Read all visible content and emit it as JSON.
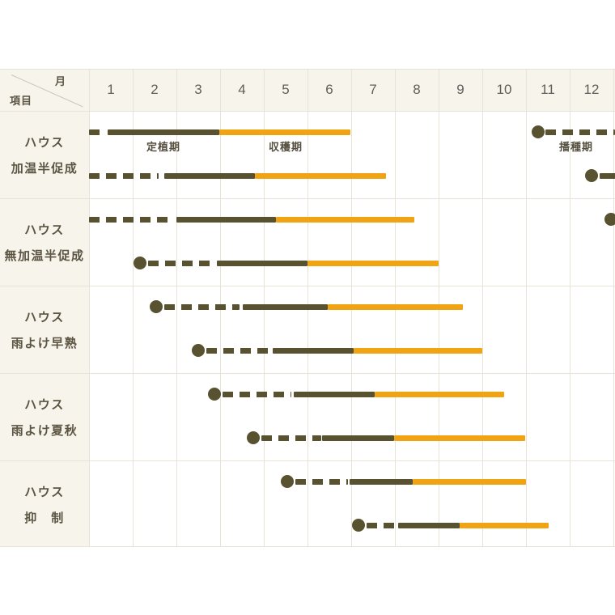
{
  "header": {
    "month_axis_label": "月",
    "item_axis_label": "項目",
    "months": [
      "1",
      "2",
      "3",
      "4",
      "5",
      "6",
      "7",
      "8",
      "9",
      "10",
      "11",
      "12"
    ]
  },
  "colors": {
    "bar_dark": "#585231",
    "bar_orange": "#F0A413",
    "table_bg": "#F7F4EB",
    "plot_bg": "#FFFFFF",
    "grid_line": "#E7E3D8",
    "label_text": "#5C5544",
    "month_text": "#5E5E5A",
    "annotation_text": "#554F3F",
    "diagonal_line": "#C9C5BA"
  },
  "chart_data": {
    "type": "gantt-calendar",
    "title": "",
    "x_axis": {
      "label": "月",
      "range": [
        1,
        13
      ],
      "ticks": [
        "1",
        "2",
        "3",
        "4",
        "5",
        "6",
        "7",
        "8",
        "9",
        "10",
        "11",
        "12"
      ]
    },
    "legend": {
      "dot_and_dash": "播種期",
      "solid_dark": "定植期",
      "solid_orange": "収穫期"
    },
    "rows": [
      {
        "label_lines": [
          "ハウス",
          "加温半促成"
        ],
        "lines": [
          {
            "segments": [
              {
                "type": "dash",
                "from": 1.0,
                "to": 1.3
              },
              {
                "type": "solid",
                "from": 1.42,
                "to": 3.98
              },
              {
                "type": "harvest",
                "from": 3.98,
                "to": 6.98
              },
              {
                "type": "dot",
                "at": 11.28
              },
              {
                "type": "dash",
                "from": 11.45,
                "to": 13.05
              }
            ],
            "annotations": [
              {
                "text": "定植期",
                "at": 2.7
              },
              {
                "text": "収穫期",
                "at": 5.5
              },
              {
                "text": "播種期",
                "at": 12.15
              }
            ]
          },
          {
            "segments": [
              {
                "type": "dash",
                "from": 1.0,
                "to": 2.6
              },
              {
                "type": "solid",
                "from": 2.72,
                "to": 4.8
              },
              {
                "type": "harvest",
                "from": 4.8,
                "to": 7.8
              },
              {
                "type": "dot",
                "at": 12.5
              },
              {
                "type": "solid",
                "from": 12.68,
                "to": 13.05
              }
            ],
            "annotations": []
          }
        ]
      },
      {
        "label_lines": [
          "ハウス",
          "無加温半促成"
        ],
        "lines": [
          {
            "segments": [
              {
                "type": "dash",
                "from": 1.0,
                "to": 2.95
              },
              {
                "type": "solid",
                "from": 3.0,
                "to": 5.28
              },
              {
                "type": "harvest",
                "from": 5.28,
                "to": 8.45
              },
              {
                "type": "dot",
                "at": 12.95
              }
            ],
            "annotations": []
          },
          {
            "segments": [
              {
                "type": "dot",
                "at": 2.17
              },
              {
                "type": "dash",
                "from": 2.35,
                "to": 3.88
              },
              {
                "type": "solid",
                "from": 3.92,
                "to": 6.0
              },
              {
                "type": "harvest",
                "from": 6.0,
                "to": 9.0
              }
            ],
            "annotations": []
          }
        ]
      },
      {
        "label_lines": [
          "ハウス",
          "雨よけ早熟"
        ],
        "lines": [
          {
            "segments": [
              {
                "type": "dot",
                "at": 2.54
              },
              {
                "type": "dash",
                "from": 2.72,
                "to": 4.45
              },
              {
                "type": "solid",
                "from": 4.52,
                "to": 6.46
              },
              {
                "type": "harvest",
                "from": 6.46,
                "to": 9.56
              }
            ],
            "annotations": []
          },
          {
            "segments": [
              {
                "type": "dot",
                "at": 3.5
              },
              {
                "type": "dash",
                "from": 3.68,
                "to": 5.16
              },
              {
                "type": "solid",
                "from": 5.2,
                "to": 7.06
              },
              {
                "type": "harvest",
                "from": 7.06,
                "to": 10.0
              }
            ],
            "annotations": []
          }
        ]
      },
      {
        "label_lines": [
          "ハウス",
          "雨よけ夏秋"
        ],
        "lines": [
          {
            "segments": [
              {
                "type": "dot",
                "at": 3.87
              },
              {
                "type": "dash",
                "from": 4.05,
                "to": 5.63
              },
              {
                "type": "solid",
                "from": 5.69,
                "to": 7.54
              },
              {
                "type": "harvest",
                "from": 7.54,
                "to": 10.5
              }
            ],
            "annotations": []
          },
          {
            "segments": [
              {
                "type": "dot",
                "at": 4.76
              },
              {
                "type": "dash",
                "from": 4.94,
                "to": 6.31
              },
              {
                "type": "solid",
                "from": 6.33,
                "to": 7.98
              },
              {
                "type": "harvest",
                "from": 7.98,
                "to": 10.98
              }
            ],
            "annotations": []
          }
        ]
      },
      {
        "label_lines": [
          "ハウス",
          "抑　制"
        ],
        "lines": [
          {
            "segments": [
              {
                "type": "dot",
                "at": 5.54
              },
              {
                "type": "dash",
                "from": 5.72,
                "to": 6.93
              },
              {
                "type": "solid",
                "from": 6.96,
                "to": 8.41
              },
              {
                "type": "harvest",
                "from": 8.41,
                "to": 11.0
              }
            ],
            "annotations": []
          },
          {
            "segments": [
              {
                "type": "dot",
                "at": 7.17
              },
              {
                "type": "dash",
                "from": 7.35,
                "to": 8.04
              },
              {
                "type": "solid",
                "from": 8.07,
                "to": 9.48
              },
              {
                "type": "harvest",
                "from": 9.48,
                "to": 11.52
              }
            ],
            "annotations": []
          }
        ]
      }
    ]
  }
}
